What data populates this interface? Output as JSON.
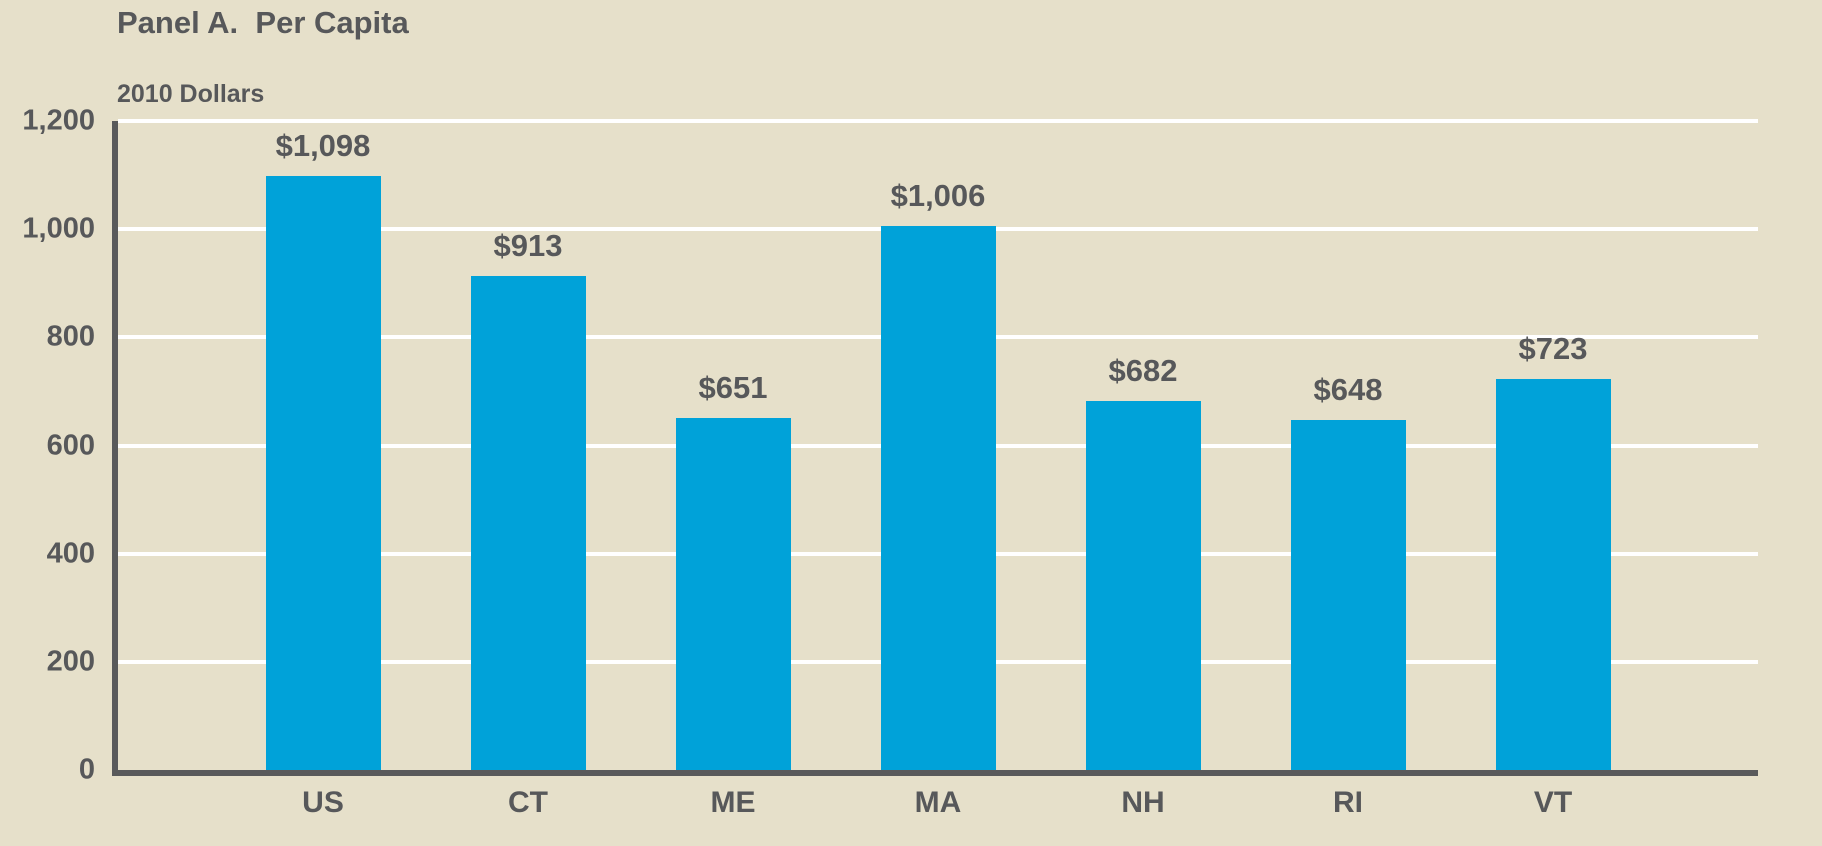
{
  "header": {
    "title": "Panel A.  Per Capita",
    "units_label": "2010 Dollars"
  },
  "chart_data": {
    "type": "bar",
    "title": "Panel A.  Per Capita",
    "ylabel": "2010 Dollars",
    "xlabel": "",
    "categories": [
      "US",
      "CT",
      "ME",
      "MA",
      "NH",
      "RI",
      "VT"
    ],
    "values": [
      1098,
      913,
      651,
      1006,
      682,
      648,
      723
    ],
    "value_labels": [
      "$1,098",
      "$913",
      "$651",
      "$1,006",
      "$682",
      "$648",
      "$723"
    ],
    "ylim": [
      0,
      1200
    ],
    "ytick_step": 200,
    "ytick_labels": [
      "0",
      "200",
      "400",
      "600",
      "800",
      "1,000",
      "1,200"
    ],
    "grid": true,
    "legend": "none",
    "colors": {
      "bar": "#00A2D9",
      "background": "#E6E0CA",
      "gridline": "#FFFFFF",
      "axis": "#595A5B",
      "text": "#57585A"
    }
  }
}
